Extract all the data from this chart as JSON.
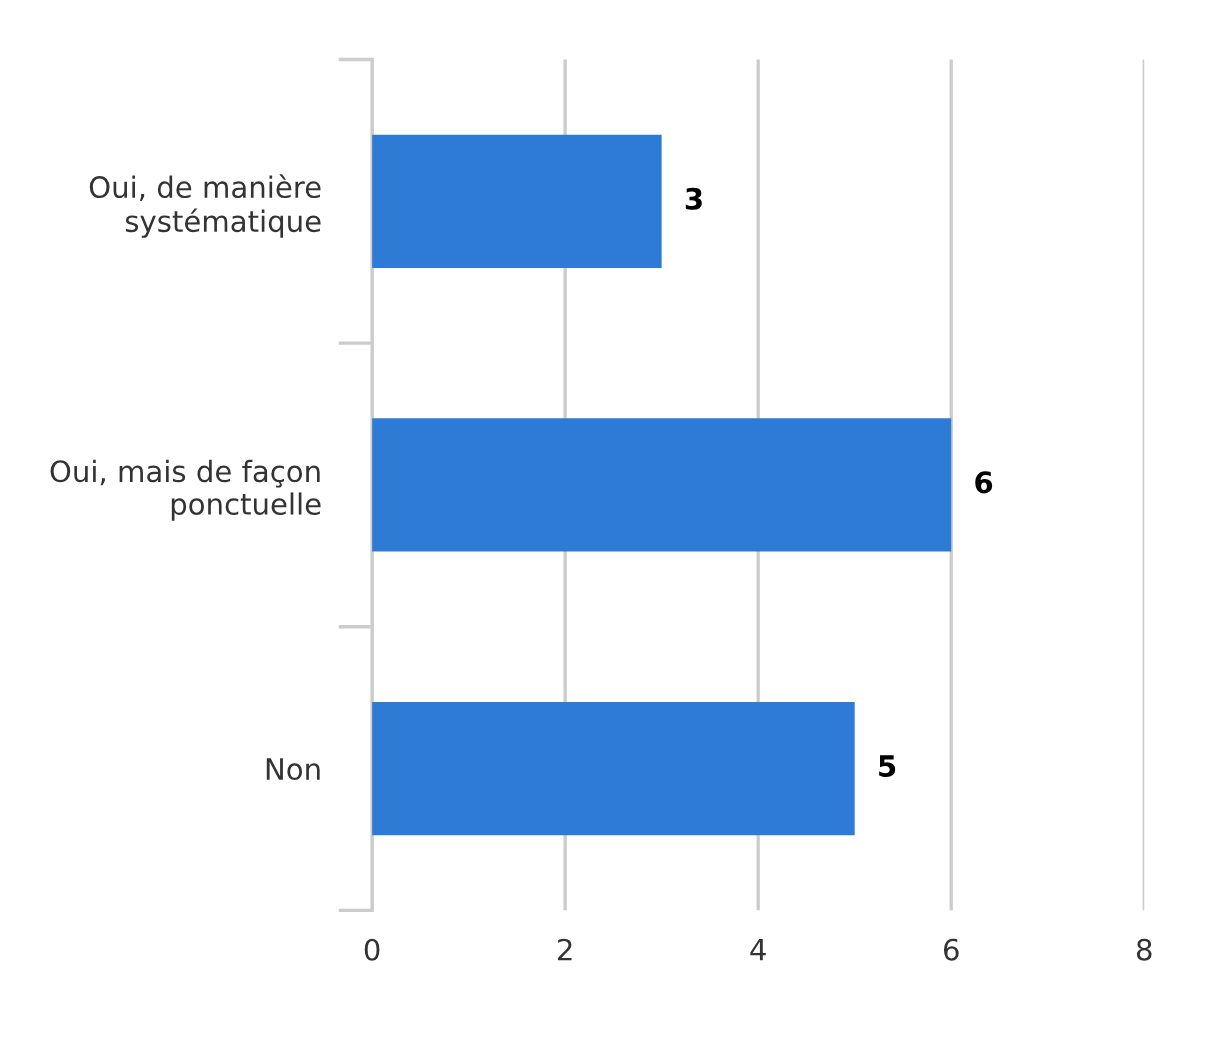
{
  "chart_data": {
    "type": "bar",
    "orientation": "horizontal",
    "categories": [
      "Oui, de manière\nsystématique",
      "Oui, mais de façon\nponctuelle",
      "Non"
    ],
    "values": [
      3,
      6,
      5
    ],
    "color": "#2e7bd6",
    "xlim": [
      0,
      8
    ],
    "xticks": [
      0,
      2,
      4,
      6,
      8
    ],
    "grid": "x",
    "data_labels": true
  }
}
